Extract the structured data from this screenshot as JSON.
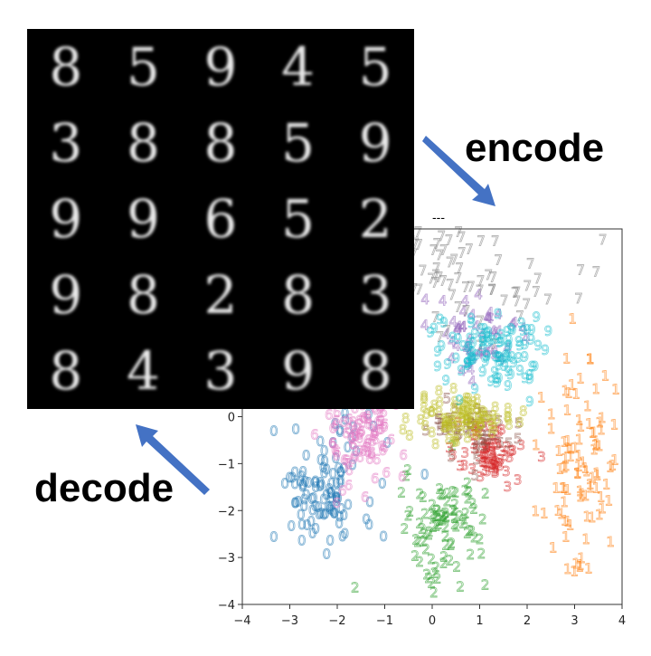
{
  "labels": {
    "encode": "encode",
    "decode": "decode"
  },
  "generated_grid": {
    "rows": [
      [
        "8",
        "5",
        "9",
        "4",
        "5"
      ],
      [
        "3",
        "8",
        "8",
        "5",
        "9"
      ],
      [
        "9",
        "9",
        "6",
        "5",
        "2"
      ],
      [
        "9",
        "8",
        "2",
        "8",
        "3"
      ],
      [
        "8",
        "4",
        "3",
        "9",
        "8"
      ]
    ]
  },
  "chart_data": {
    "type": "scatter",
    "title": "",
    "xlabel": "",
    "ylabel": "",
    "xlim": [
      -4,
      4
    ],
    "ylim": [
      -4,
      1
    ],
    "x_ticks": [
      -4,
      -3,
      -2,
      -1,
      0,
      1,
      2,
      3,
      4
    ],
    "y_ticks": [
      -4,
      -3,
      -2,
      -1,
      0
    ],
    "y_tick_labels": [
      "−4",
      "−3",
      "−2",
      "−1",
      "0"
    ],
    "x_tick_labels": [
      "−4",
      "−3",
      "−2",
      "−1",
      "0",
      "1",
      "2",
      "3",
      "4"
    ],
    "marker": "digit glyph",
    "colors": {
      "0": "#1f77b4",
      "1": "#ff7f0e",
      "2": "#2ca02c",
      "3": "#d62728",
      "4": "#9467bd",
      "5": "#8c564b",
      "6": "#e377c2",
      "7": "#7f7f7f",
      "8": "#bcbd22",
      "9": "#17becf"
    },
    "clusters": [
      {
        "digit": "0",
        "cx": -2.3,
        "cy": -1.6,
        "sx": 0.55,
        "sy": 0.7,
        "n": 110
      },
      {
        "digit": "1",
        "cx": 3.2,
        "cy": -1.2,
        "sx": 0.45,
        "sy": 1.3,
        "n": 100
      },
      {
        "digit": "2",
        "cx": 0.3,
        "cy": -2.4,
        "sx": 0.45,
        "sy": 0.55,
        "n": 90
      },
      {
        "digit": "3",
        "cx": 1.2,
        "cy": -0.9,
        "sx": 0.35,
        "sy": 0.3,
        "n": 70
      },
      {
        "digit": "4",
        "cx": 0.9,
        "cy": 1.6,
        "sx": 0.6,
        "sy": 0.5,
        "n": 50
      },
      {
        "digit": "5",
        "cx": 0.9,
        "cy": -0.4,
        "sx": 0.45,
        "sy": 0.3,
        "n": 40
      },
      {
        "digit": "6",
        "cx": -1.5,
        "cy": -0.5,
        "sx": 0.4,
        "sy": 0.55,
        "n": 90
      },
      {
        "digit": "7",
        "cx": 0.6,
        "cy": 3.0,
        "sx": 1.1,
        "sy": 0.7,
        "n": 90
      },
      {
        "digit": "8",
        "cx": 0.6,
        "cy": -0.1,
        "sx": 0.5,
        "sy": 0.25,
        "n": 90
      },
      {
        "digit": "9",
        "cx": 1.2,
        "cy": 1.3,
        "sx": 0.55,
        "sy": 0.4,
        "n": 100
      }
    ]
  }
}
